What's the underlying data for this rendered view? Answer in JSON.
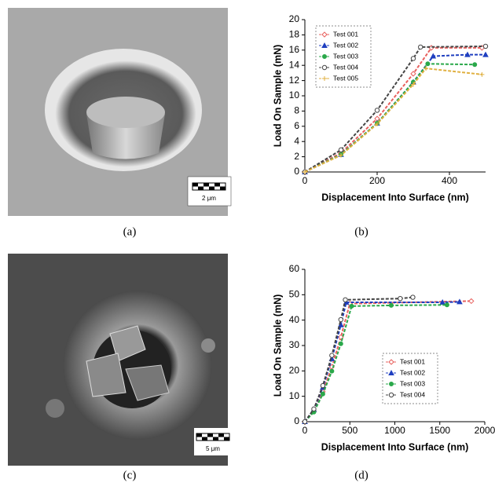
{
  "panels": [
    {
      "caption": "(a)",
      "scale_bar": "2 μm"
    },
    {
      "caption": "(b)"
    },
    {
      "caption": "(c)",
      "scale_bar": "5 μm"
    },
    {
      "caption": "(d)"
    }
  ],
  "chart_data": [
    {
      "type": "line",
      "xlabel": "Displacement Into Surface (nm)",
      "ylabel": "Load On Sample (mN)",
      "xlim": [
        0,
        500
      ],
      "xticks": [
        0,
        200,
        400
      ],
      "ylim": [
        0,
        20
      ],
      "yticks": [
        0,
        2,
        4,
        6,
        8,
        10,
        12,
        14,
        16,
        18,
        20
      ],
      "legend": "upper left",
      "series": [
        {
          "name": "Test 001",
          "color": "#e8605e",
          "marker": "diamond",
          "x": [
            0,
            100,
            200,
            300,
            350,
            490
          ],
          "values": [
            0,
            2.5,
            7.0,
            12.9,
            16.3,
            16.3
          ]
        },
        {
          "name": "Test 002",
          "color": "#1f3fc0",
          "marker": "triangle",
          "x": [
            0,
            100,
            200,
            300,
            355,
            450,
            500
          ],
          "values": [
            0,
            2.3,
            6.4,
            11.8,
            15.2,
            15.4,
            15.4
          ]
        },
        {
          "name": "Test 003",
          "color": "#2aa84a",
          "marker": "circle",
          "x": [
            0,
            100,
            200,
            300,
            340,
            470
          ],
          "values": [
            0,
            2.3,
            6.4,
            11.8,
            14.2,
            14.1
          ]
        },
        {
          "name": "Test 004",
          "color": "#444444",
          "marker": "open-circle",
          "x": [
            0,
            100,
            200,
            300,
            320,
            500
          ],
          "values": [
            0,
            2.9,
            8.1,
            14.9,
            16.4,
            16.5
          ]
        },
        {
          "name": "Test 005",
          "color": "#e0b040",
          "marker": "cross",
          "x": [
            0,
            100,
            200,
            300,
            335,
            490
          ],
          "values": [
            0,
            2.2,
            6.3,
            11.5,
            13.6,
            12.8
          ]
        }
      ]
    },
    {
      "type": "line",
      "xlabel": "Displacement Into Surface (nm)",
      "ylabel": "Load On Sample (mN)",
      "xlim": [
        0,
        2000
      ],
      "xticks": [
        0,
        500,
        1000,
        1500,
        2000
      ],
      "ylim": [
        0,
        60
      ],
      "yticks": [
        0,
        10,
        20,
        30,
        40,
        50,
        60
      ],
      "legend": "center right",
      "series": [
        {
          "name": "Test 001",
          "color": "#e8605e",
          "marker": "diamond",
          "x": [
            0,
            100,
            200,
            300,
            400,
            500,
            1850
          ],
          "values": [
            0,
            4.2,
            11.8,
            21.6,
            33.3,
            46.5,
            47.5
          ]
        },
        {
          "name": "Test 002",
          "color": "#1f3fc0",
          "marker": "triangle",
          "x": [
            0,
            100,
            200,
            300,
            400,
            460,
            1530,
            1720
          ],
          "values": [
            0,
            4.8,
            13.5,
            24.8,
            38.1,
            47,
            47,
            47.2
          ]
        },
        {
          "name": "Test 003",
          "color": "#2aa84a",
          "marker": "circle",
          "x": [
            0,
            100,
            200,
            300,
            400,
            520,
            960,
            1580
          ],
          "values": [
            0,
            3.8,
            10.9,
            19.9,
            30.7,
            45.5,
            45.8,
            46
          ]
        },
        {
          "name": "Test 004",
          "color": "#444444",
          "marker": "open-circle",
          "x": [
            0,
            100,
            200,
            300,
            400,
            450,
            1060,
            1200
          ],
          "values": [
            0,
            5.0,
            14.2,
            26.1,
            40.2,
            48,
            48.5,
            49
          ]
        }
      ]
    }
  ]
}
